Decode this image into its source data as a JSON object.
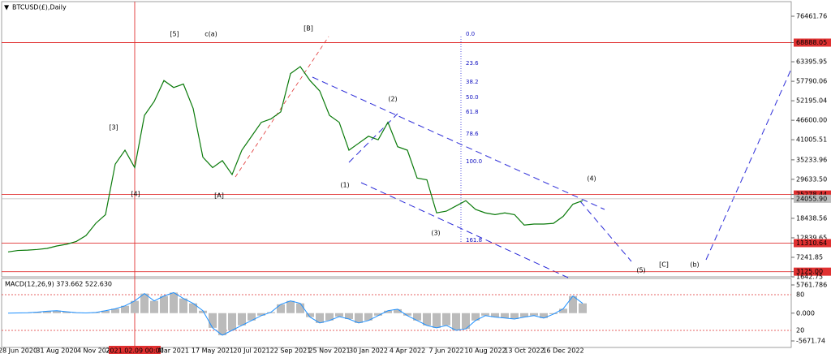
{
  "chart_data": {
    "type": "line",
    "title": "BTCUSD(£),Daily",
    "categories": [
      null,
      "28 Jun 2020",
      null,
      null,
      null,
      "31 Aug 2020",
      null,
      null,
      null,
      "4 Nov 2020",
      null,
      null,
      null,
      "2021.02.09 00:00",
      null,
      null,
      null,
      "Mar 2021",
      null,
      null,
      null,
      "17 May 2021",
      null,
      null,
      null,
      "20 Jul 2021",
      null,
      null,
      null,
      "22 Sep 2021",
      null,
      null,
      null,
      "25 Nov 2021",
      null,
      null,
      null,
      "30 Jan 2022",
      null,
      null,
      null,
      "4 Apr 2022",
      null,
      null,
      null,
      "7 Jun 2022",
      null,
      null,
      null,
      "10 Aug 2022",
      null,
      null,
      null,
      "13 Oct 2022",
      null,
      null,
      null,
      "16 Dec 2022",
      null,
      null
    ],
    "crosshair_index": 13,
    "series": [
      {
        "name": "BTCUSD",
        "color": "#0a7a0a",
        "values": [
          8800,
          9200,
          9300,
          9500,
          9800,
          10500,
          11000,
          11800,
          13500,
          17000,
          19500,
          34000,
          38000,
          33000,
          48000,
          52000,
          58000,
          56000,
          57000,
          50000,
          36000,
          33000,
          35000,
          31000,
          38000,
          42000,
          46000,
          47000,
          49000,
          60000,
          62000,
          58000,
          55000,
          48000,
          46000,
          38000,
          40000,
          42000,
          41000,
          46000,
          39000,
          38000,
          30000,
          29500,
          20000,
          20500,
          22000,
          23500,
          21000,
          20000,
          19500,
          20000,
          19500,
          16500,
          16800,
          16800,
          17000,
          19000,
          22500,
          23500
        ]
      }
    ],
    "ylim": [
      1642.75,
      79260
    ],
    "yticks": [
      {
        "value": 76461.76,
        "label": "76461.76"
      },
      {
        "value": 68888.05,
        "label": "68888.05",
        "highlight": true
      },
      {
        "value": 63395.95,
        "label": "63395.95"
      },
      {
        "value": 57790.06,
        "label": "57790.06"
      },
      {
        "value": 52195.04,
        "label": "52195.04"
      },
      {
        "value": 46600,
        "label": "46600.00"
      },
      {
        "value": 41005.51,
        "label": "41005.51"
      },
      {
        "value": 35233.96,
        "label": "35233.96"
      },
      {
        "value": 29633.5,
        "label": "29633.50"
      },
      {
        "value": 25278.44,
        "label": "25278.44",
        "highlight": true
      },
      {
        "value": 24055.9,
        "label": "24055.90",
        "current": true
      },
      {
        "value": 18438.56,
        "label": "18438.56"
      },
      {
        "value": 12839.65,
        "label": "12839.65"
      },
      {
        "value": 11310.64,
        "label": "11310.64",
        "highlight": true
      },
      {
        "value": 7241.85,
        "label": "7241.85"
      },
      {
        "value": 3125,
        "label": "3125.00",
        "highlight": true
      },
      {
        "value": 1642.75,
        "label": "1642.75"
      }
    ],
    "annotations": [
      {
        "text": "[5]",
        "color": "#000000"
      },
      {
        "text": "c(a)",
        "color": "#2a9a2a"
      },
      {
        "text": "[B]",
        "color": "#000000"
      },
      {
        "text": "[3]",
        "color": "#000000"
      },
      {
        "text": "[4]",
        "color": "#000000"
      },
      {
        "text": "[A]",
        "color": "#000000"
      },
      {
        "text": "(1)",
        "color": "#1a1ad0"
      },
      {
        "text": "(2)",
        "color": "#1a1ad0"
      },
      {
        "text": "(3)",
        "color": "#1a1ad0"
      },
      {
        "text": "(4)",
        "color": "#1a1ad0"
      },
      {
        "text": "(5)",
        "color": "#1a1ad0"
      },
      {
        "text": "[C]",
        "color": "#000000"
      },
      {
        "text": "(b)",
        "color": "#2a9a2a"
      }
    ],
    "fib_levels": [
      "0.0",
      "23.6",
      "38.2",
      "50.0",
      "61.8",
      "78.6",
      "100.0",
      "161.8"
    ],
    "macd": {
      "title": "MACD(12,26,9) 373.662 522.630",
      "color": "#1e90ff",
      "values": [
        0,
        50,
        80,
        200,
        400,
        500,
        300,
        100,
        50,
        150,
        500,
        900,
        1500,
        2500,
        4000,
        2500,
        3500,
        4200,
        3000,
        2000,
        500,
        -3000,
        -4500,
        -3500,
        -2500,
        -1500,
        -500,
        200,
        1800,
        2500,
        2000,
        -800,
        -2000,
        -1500,
        -700,
        -1200,
        -2000,
        -1500,
        -500,
        500,
        800,
        -500,
        -1500,
        -2500,
        -3000,
        -2500,
        -3500,
        -3200,
        -1500,
        -500,
        -800,
        -1000,
        -1200,
        -800,
        -500,
        -1000,
        -200,
        900,
        3500,
        2000
      ],
      "ylim": [
        -7000,
        6920
      ],
      "yticks": [
        {
          "value": 5761.786,
          "label": "5761.786"
        },
        {
          "value": 0,
          "label": "0.000"
        },
        {
          "value": -5671.74,
          "label": "-5671.74"
        }
      ],
      "levels": [
        "80",
        "20"
      ]
    }
  }
}
